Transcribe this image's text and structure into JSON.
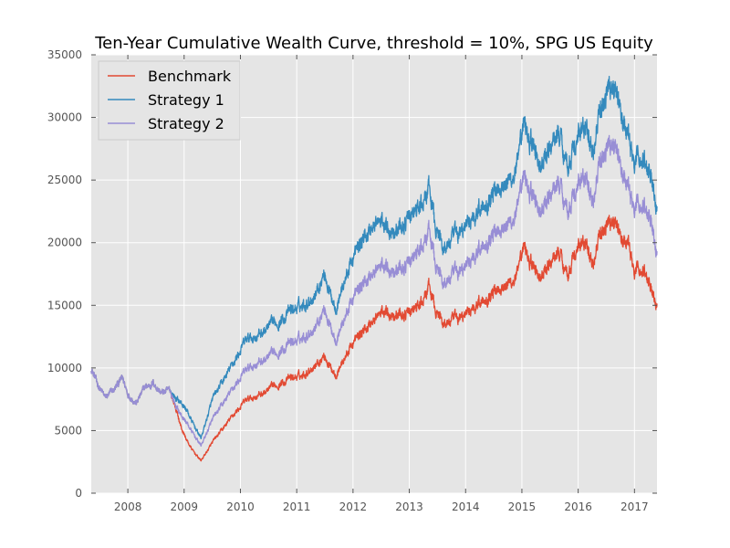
{
  "chart_data": {
    "type": "line",
    "title": "Ten-Year Cumulative Wealth Curve, threshold = 10%, SPG US Equity",
    "xlabel": "",
    "ylabel": "",
    "xlim": [
      2007.35,
      2017.4
    ],
    "ylim": [
      0,
      35000
    ],
    "xticks": [
      2008,
      2009,
      2010,
      2011,
      2012,
      2013,
      2014,
      2015,
      2016,
      2017
    ],
    "yticks": [
      0,
      5000,
      10000,
      15000,
      20000,
      25000,
      30000,
      35000
    ],
    "grid": true,
    "legend": "top-left",
    "series": [
      {
        "name": "Benchmark",
        "color": "#e24a33",
        "x": [
          2007.35,
          2007.45,
          2007.6,
          2007.75,
          2007.9,
          2008.0,
          2008.15,
          2008.3,
          2008.45,
          2008.6,
          2008.75,
          2008.85,
          2008.95,
          2009.05,
          2009.15,
          2009.3,
          2009.5,
          2009.7,
          2009.9,
          2010.1,
          2010.3,
          2010.5,
          2010.7,
          2010.9,
          2011.1,
          2011.3,
          2011.5,
          2011.6,
          2011.7,
          2011.85,
          2012.0,
          2012.2,
          2012.4,
          2012.6,
          2012.8,
          2013.0,
          2013.2,
          2013.35,
          2013.45,
          2013.6,
          2013.8,
          2014.0,
          2014.2,
          2014.4,
          2014.6,
          2014.8,
          2014.95,
          2015.05,
          2015.2,
          2015.35,
          2015.5,
          2015.65,
          2015.8,
          2015.95,
          2016.1,
          2016.25,
          2016.4,
          2016.55,
          2016.65,
          2016.75,
          2016.9,
          2017.0,
          2017.1,
          2017.2,
          2017.3,
          2017.4
        ],
        "y": [
          10000,
          8800,
          7600,
          8200,
          9200,
          8000,
          7200,
          8400,
          8800,
          8000,
          8200,
          6800,
          5200,
          4200,
          3400,
          2600,
          4000,
          5200,
          6400,
          7400,
          7800,
          8200,
          8800,
          9200,
          9400,
          10200,
          11000,
          10000,
          9600,
          10800,
          12000,
          13000,
          14000,
          14600,
          14200,
          14400,
          15000,
          16400,
          14800,
          13600,
          13800,
          14200,
          15200,
          15800,
          16600,
          16800,
          17600,
          19600,
          18000,
          17200,
          18200,
          19400,
          17600,
          19200,
          20000,
          18400,
          20600,
          21600,
          22000,
          20400,
          19600,
          17400,
          18000,
          17600,
          16400,
          15200
        ]
      },
      {
        "name": "Strategy 1",
        "color": "#348abd",
        "x": [
          2007.35,
          2007.45,
          2007.6,
          2007.75,
          2007.9,
          2008.0,
          2008.15,
          2008.3,
          2008.45,
          2008.6,
          2008.75,
          2008.85,
          2008.95,
          2009.05,
          2009.15,
          2009.3,
          2009.5,
          2009.7,
          2009.9,
          2010.1,
          2010.3,
          2010.5,
          2010.7,
          2010.9,
          2011.1,
          2011.3,
          2011.5,
          2011.6,
          2011.7,
          2011.85,
          2012.0,
          2012.2,
          2012.4,
          2012.6,
          2012.8,
          2013.0,
          2013.2,
          2013.35,
          2013.45,
          2013.6,
          2013.8,
          2014.0,
          2014.2,
          2014.4,
          2014.6,
          2014.8,
          2014.95,
          2015.05,
          2015.2,
          2015.35,
          2015.5,
          2015.65,
          2015.8,
          2015.95,
          2016.1,
          2016.25,
          2016.4,
          2016.55,
          2016.65,
          2016.75,
          2016.9,
          2017.0,
          2017.1,
          2017.2,
          2017.3,
          2017.4
        ],
        "y": [
          10000,
          8800,
          7600,
          8200,
          9200,
          8000,
          7200,
          8400,
          8800,
          8000,
          8200,
          7600,
          7200,
          6600,
          5600,
          4400,
          7400,
          9000,
          10600,
          12200,
          12600,
          13200,
          13800,
          14600,
          15000,
          15800,
          17600,
          15800,
          15000,
          17000,
          18800,
          20400,
          21600,
          21400,
          21000,
          22000,
          22800,
          24200,
          21600,
          19600,
          20400,
          21200,
          22600,
          23600,
          24800,
          25000,
          26400,
          29400,
          27600,
          26000,
          27400,
          29000,
          26400,
          27800,
          29200,
          27400,
          30400,
          32400,
          32800,
          30400,
          28000,
          26000,
          27000,
          26400,
          25400,
          23000
        ]
      },
      {
        "name": "Strategy 2",
        "color": "#988ed5",
        "x": [
          2007.35,
          2007.45,
          2007.6,
          2007.75,
          2007.9,
          2008.0,
          2008.15,
          2008.3,
          2008.45,
          2008.6,
          2008.75,
          2008.85,
          2008.95,
          2009.05,
          2009.15,
          2009.3,
          2009.5,
          2009.7,
          2009.9,
          2010.1,
          2010.3,
          2010.5,
          2010.7,
          2010.9,
          2011.1,
          2011.3,
          2011.5,
          2011.6,
          2011.7,
          2011.85,
          2012.0,
          2012.2,
          2012.4,
          2012.6,
          2012.8,
          2013.0,
          2013.2,
          2013.35,
          2013.45,
          2013.6,
          2013.8,
          2014.0,
          2014.2,
          2014.4,
          2014.6,
          2014.8,
          2014.95,
          2015.05,
          2015.2,
          2015.35,
          2015.5,
          2015.65,
          2015.8,
          2015.95,
          2016.1,
          2016.25,
          2016.4,
          2016.55,
          2016.65,
          2016.75,
          2016.9,
          2017.0,
          2017.1,
          2017.2,
          2017.3,
          2017.4
        ],
        "y": [
          10000,
          8800,
          7600,
          8200,
          9200,
          8000,
          7200,
          8400,
          8800,
          8000,
          8200,
          7000,
          6200,
          5600,
          4800,
          3800,
          5800,
          7200,
          8600,
          9800,
          10400,
          10800,
          11400,
          12000,
          12400,
          13200,
          14800,
          13200,
          12400,
          14000,
          15600,
          16800,
          17800,
          18200,
          17800,
          18400,
          19400,
          20800,
          18600,
          16800,
          17400,
          18000,
          19400,
          20400,
          21400,
          21600,
          22800,
          25200,
          23600,
          22400,
          23600,
          25000,
          22800,
          24000,
          25200,
          23400,
          26400,
          27800,
          28200,
          26000,
          24000,
          22400,
          23200,
          22800,
          21800,
          19400
        ]
      }
    ]
  }
}
